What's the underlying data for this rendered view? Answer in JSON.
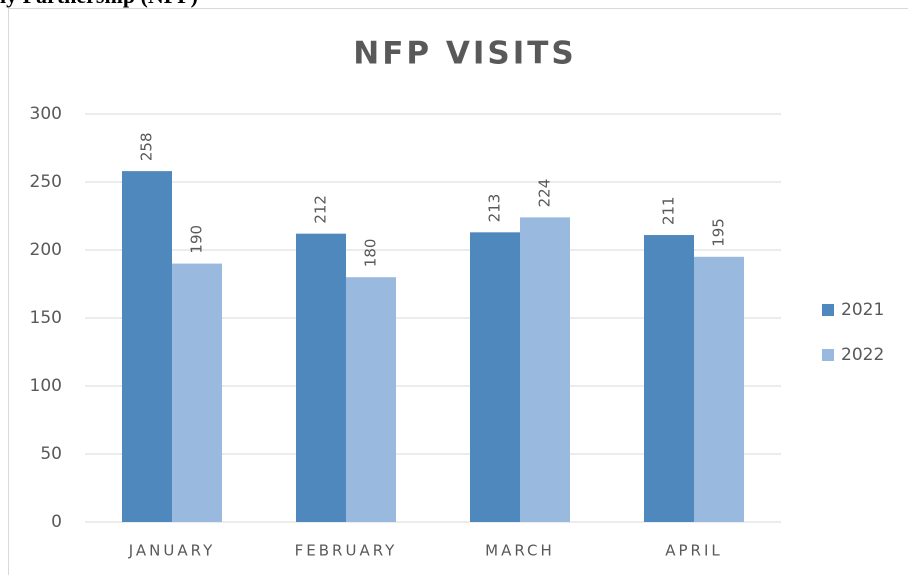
{
  "page_heading": "ly Partnership (NFP)",
  "chart_data": {
    "type": "bar",
    "title": "NFP VISITS",
    "categories": [
      "JANUARY",
      "FEBRUARY",
      "MARCH",
      "APRIL"
    ],
    "series": [
      {
        "name": "2021",
        "color": "#4f88bd",
        "values": [
          258,
          212,
          213,
          211
        ]
      },
      {
        "name": "2022",
        "color": "#99b9df",
        "values": [
          190,
          180,
          224,
          195
        ]
      }
    ],
    "ylim": [
      0,
      300
    ],
    "yticks": [
      0,
      50,
      100,
      150,
      200,
      250,
      300
    ],
    "grid": true,
    "legend": "right"
  }
}
